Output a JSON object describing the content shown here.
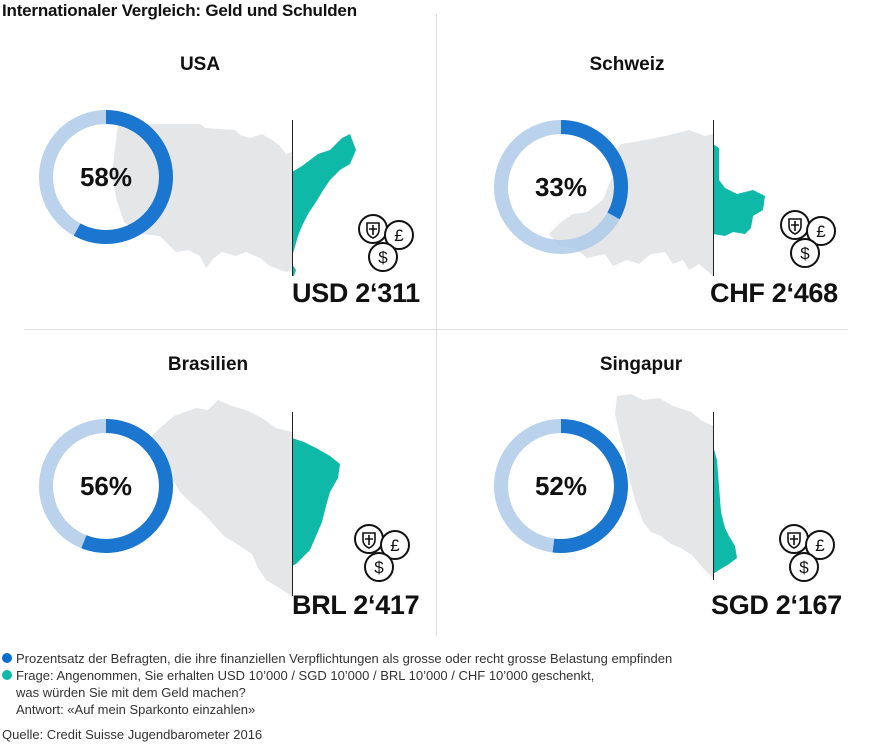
{
  "title": "Internationaler Vergleich: Geld und Schulden",
  "colors": {
    "percentage": "#0a6ccc",
    "donut_track": "#aecae9",
    "savings_region": "#0fb9a8",
    "country_map": "#e5e6e8"
  },
  "chart_data": {
    "type": "donut",
    "panels": [
      {
        "country": "USA",
        "percent": 58,
        "percent_label": "58%",
        "amount_label": "USD 2‘311"
      },
      {
        "country": "Schweiz",
        "percent": 33,
        "percent_label": "33%",
        "amount_label": "CHF 2‘468"
      },
      {
        "country": "Brasilien",
        "percent": 56,
        "percent_label": "56%",
        "amount_label": "BRL 2‘417"
      },
      {
        "country": "Singapur",
        "percent": 52,
        "percent_label": "52%",
        "amount_label": "SGD 2‘167"
      }
    ]
  },
  "icons": [
    "shield-icon",
    "pound-icon",
    "dollar-icon"
  ],
  "legend": {
    "item1": "Prozentsatz der Befragten, die ihre finanziellen Verpflichtungen als grosse oder recht grosse Belastung empfinden",
    "item2_line1": "Frage: Angenommen, Sie erhalten USD 10’000 / SGD 10’000 / BRL 10’000 / CHF 10’000 geschenkt,",
    "item2_line2": "was würden Sie mit dem Geld machen?",
    "item2_line3": "Antwort: «Auf mein Sparkonto einzahlen»"
  },
  "source": "Quelle: Credit Suisse Jugendbarometer 2016"
}
